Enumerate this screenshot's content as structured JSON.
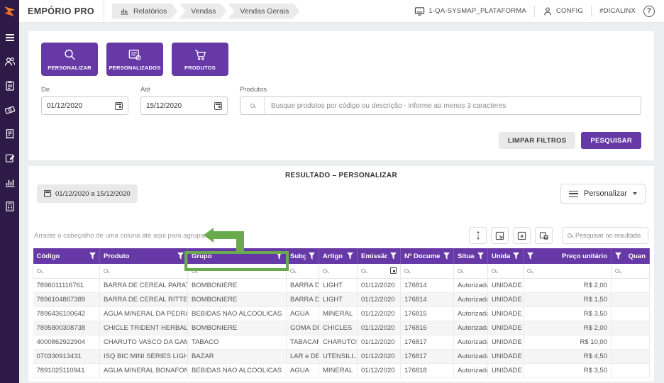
{
  "colors": {
    "accent": "#6639a6",
    "sidebar": "#2e1a47",
    "annotation": "#6aaa4e"
  },
  "header": {
    "app_name": "EMPÓRIO PRO",
    "breadcrumbs": [
      "Relatórios",
      "Vendas",
      "Vendas Gerais"
    ],
    "environment": "1-QA-SYSMAP_PLATAFORMA",
    "config_label": "CONFIG",
    "hashtag_label": "#DICALINX",
    "help_label": "?"
  },
  "sidebar": {
    "icons": [
      "menu",
      "customers",
      "clipboard",
      "money",
      "receipt",
      "document-edit",
      "bar-chart",
      "calculator"
    ]
  },
  "filters": {
    "actions": [
      {
        "label": "PERSONALIZAR",
        "icon": "search"
      },
      {
        "label": "PERSONALIZADOS",
        "icon": "document-gear"
      },
      {
        "label": "PRODUTOS",
        "icon": "cart"
      }
    ],
    "date_from": {
      "label": "De",
      "value": "01/12/2020"
    },
    "date_to": {
      "label": "Até",
      "value": "15/12/2020"
    },
    "products": {
      "label": "Produtos",
      "placeholder": "Busque produtos por código ou descrição - informe ao menos 3 caracteres"
    },
    "clear_label": "LIMPAR FILTROS",
    "search_label": "PESQUISAR"
  },
  "results": {
    "title": "RESULTADO – PERSONALIZAR",
    "date_range": "01/12/2020 a 15/12/2020",
    "personalize_label": "Personalizar",
    "group_hint": "Arraste o cabeçalho de uma coluna até aqui para agrupar",
    "result_search_placeholder": "Pesquisar no resultado...",
    "tool_icons": [
      "row-height",
      "export-document",
      "export-excel",
      "column-chooser"
    ]
  },
  "table": {
    "columns": [
      {
        "key": "codigo",
        "label": "Código"
      },
      {
        "key": "produto",
        "label": "Produto"
      },
      {
        "key": "grupo",
        "label": "Grupo"
      },
      {
        "key": "subgrupo",
        "label": "Subgru..."
      },
      {
        "key": "artigo",
        "label": "Artigo"
      },
      {
        "key": "emissao",
        "label": "Emissão",
        "date_filter": true
      },
      {
        "key": "documento",
        "label": "Nº Documento"
      },
      {
        "key": "situacao",
        "label": "Situação"
      },
      {
        "key": "unidade",
        "label": "Unidade"
      },
      {
        "key": "preco",
        "label": "Preço unitário",
        "align": "right",
        "funnel_left": true
      },
      {
        "key": "quantidade",
        "label": "Quan",
        "align": "right",
        "funnel_left": true
      }
    ],
    "rows": [
      {
        "cells": [
          "7896011116761",
          "BARRA DE CEREAL PARATI LIGH...",
          "BOMBONIERE",
          "BARRA DE...",
          "LIGHT",
          "01/12/2020",
          "176814",
          "Autorizada",
          "UNIDADE",
          "R$ 2,00",
          ""
        ]
      },
      {
        "cells": [
          "7896104867389",
          "BARRA DE CEREAL RITTER LIGH...",
          "BOMBONIERE",
          "BARRA DE...",
          "LIGHT",
          "01/12/2020",
          "176814",
          "Autorizada",
          "UNIDADE",
          "R$ 1,50",
          ""
        ]
      },
      {
        "cells": [
          "7896436100642",
          "AGUA MINERAL DA PEDRA C GA...",
          "BEBIDAS NAO ALCOOLICAS",
          "AGUA",
          "MINERAL",
          "01/12/2020",
          "176815",
          "Autorizada",
          "UNIDADE",
          "R$ 3,50",
          ""
        ]
      },
      {
        "cells": [
          "7895800308738",
          "CHICLE TRIDENT HERBAL FRES...",
          "BOMBONIERE",
          "GOMA DE ...",
          "CHICLES",
          "01/12/2020",
          "176816",
          "Autorizada",
          "UNIDADE",
          "R$ 2,00",
          ""
        ]
      },
      {
        "cells": [
          "4000862922904",
          "CHARUTO VASCO DA GAMA CX ...",
          "TABACO",
          "TABACARIA",
          "CHARUTOS",
          "01/12/2020",
          "176817",
          "Autorizada",
          "UNIDADE",
          "R$ 10,00",
          ""
        ]
      },
      {
        "cells": [
          "070330913431",
          "ISQ BIC MINI SERIES LIGHTR EC...",
          "BAZAR",
          "LAR e DEC...",
          "UTENSILI...",
          "01/12/2020",
          "176817",
          "Autorizada",
          "UNIDADE",
          "R$ 4,50",
          ""
        ]
      },
      {
        "cells": [
          "7891025110941",
          "AGUA MINERAL BONAFONT C G...",
          "BEBIDAS NAO ALCOOLICAS",
          "AGUA",
          "MINERAL",
          "01/12/2020",
          "176818",
          "Autorizada",
          "UNIDADE",
          "R$ 3,50",
          ""
        ]
      }
    ]
  }
}
